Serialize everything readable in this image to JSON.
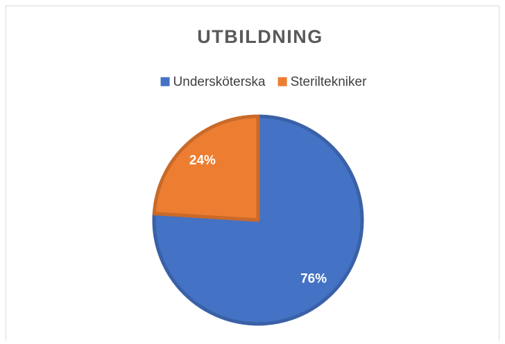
{
  "chart_data": {
    "type": "pie",
    "title": "UTBILDNING",
    "categories": [
      "Undersköterska",
      "Steriltekniker"
    ],
    "values": [
      76,
      24
    ],
    "value_labels": [
      "76%",
      "24%"
    ],
    "colors": [
      "#4472c4",
      "#ed7d31"
    ],
    "legend": "top"
  }
}
